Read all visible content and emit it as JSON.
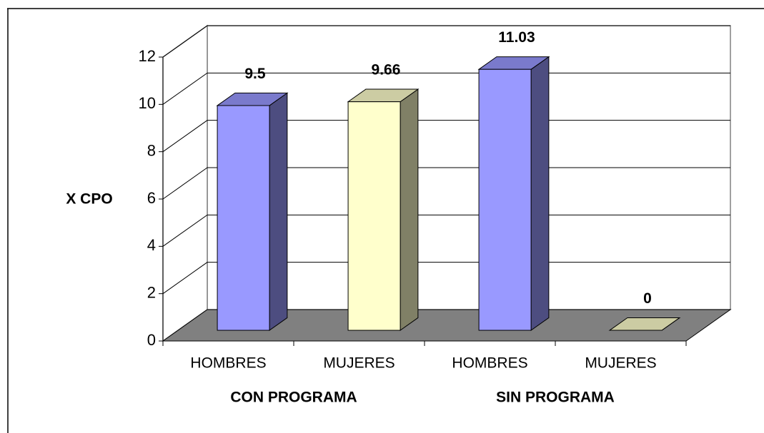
{
  "chart_data": {
    "type": "bar3d",
    "y_label": "X CPO",
    "categories": [
      "HOMBRES",
      "MUJERES",
      "HOMBRES",
      "MUJERES"
    ],
    "groups": [
      "CON PROGRAMA",
      "SIN PROGRAMA"
    ],
    "values": [
      9.5,
      9.66,
      11.03,
      0
    ],
    "colors": [
      "#9999ff",
      "#ffffcc",
      "#9999ff",
      "#ffffcc"
    ],
    "ylim": [
      0,
      12
    ],
    "yticks": [
      0,
      2,
      4,
      6,
      8,
      10,
      12
    ],
    "grid": true
  }
}
